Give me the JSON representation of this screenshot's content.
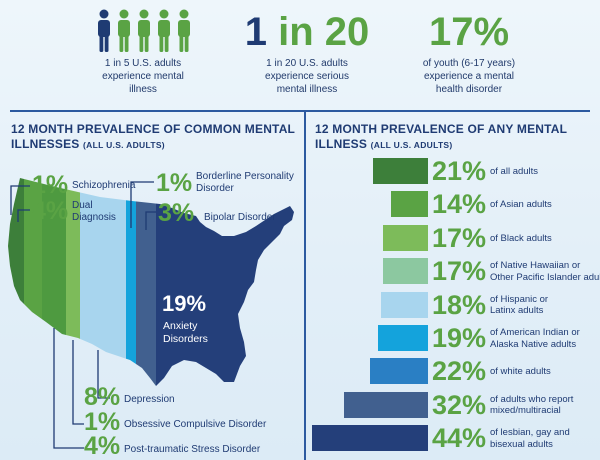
{
  "header": {
    "stats": [
      {
        "big": "",
        "desc": "1 in 5 U.S. adults experience mental illness"
      },
      {
        "big": "1 in 20",
        "desc": "1 in 20 U.S. adults experience serious mental illness"
      },
      {
        "big": "17%",
        "desc": "of youth (6-17 years) experience a mental health disorder"
      }
    ]
  },
  "left_section": {
    "title": "12 MONTH PREVALENCE OF COMMON MENTAL ILLNESSES",
    "subtitle": "(ALL U.S. ADULTS)"
  },
  "right_section": {
    "title": "12 MONTH PREVALENCE OF ANY MENTAL ILLNESS",
    "subtitle": "(ALL U.S. ADULTS)"
  },
  "chart_data": [
    {
      "type": "pie",
      "title": "12 MONTH PREVALENCE OF COMMON MENTAL ILLNESSES (ALL U.S. ADULTS)",
      "categories": [
        "Schizophrenia",
        "Dual Diagnosis",
        "Borderline Personality Disorder",
        "Bipolar Disorder",
        "Anxiety Disorders",
        "Depression",
        "Obsessive Compulsive Disorder",
        "Post-traumatic Stress Disorder"
      ],
      "values": [
        1,
        4,
        1,
        3,
        19,
        8,
        1,
        4
      ],
      "labels": [
        "1%",
        "4%",
        "1%",
        "3%",
        "19%",
        "8%",
        "1%",
        "4%"
      ],
      "colors": [
        "#3d7f3a",
        "#5aa344",
        "#14a3dc",
        "#41608f",
        "#243f7a",
        "#a8d5ee",
        "#7dbb5a",
        "#4e9a40"
      ]
    },
    {
      "type": "bar",
      "title": "12 MONTH PREVALENCE OF ANY MENTAL ILLNESS (ALL U.S. ADULTS)",
      "categories": [
        "of all adults",
        "of Asian adults",
        "of Black adults",
        "of Native Hawaiian or Other Pacific Islander adults",
        "of Hispanic or Latinx adults",
        "of American Indian or Alaska Native adults",
        "of white adults",
        "of adults who report mixed/multiracial",
        "of lesbian, gay and bisexual adults"
      ],
      "category_lines": [
        [
          "of all adults"
        ],
        [
          "of Asian adults"
        ],
        [
          "of Black adults"
        ],
        [
          "of Native Hawaiian or",
          "Other Pacific Islander adults"
        ],
        [
          "of Hispanic or",
          "Latinx adults"
        ],
        [
          "of American Indian or",
          "Alaska Native adults"
        ],
        [
          "of white adults"
        ],
        [
          "of adults who report",
          "mixed/multiracial"
        ],
        [
          "of lesbian, gay and",
          "bisexual adults"
        ]
      ],
      "values": [
        21,
        14,
        17,
        17,
        18,
        19,
        22,
        32,
        44
      ],
      "labels": [
        "21%",
        "14%",
        "17%",
        "17%",
        "18%",
        "19%",
        "22%",
        "32%",
        "44%"
      ],
      "colors": [
        "#3d7f3a",
        "#5aa344",
        "#7dbb5a",
        "#8cc8a0",
        "#a8d5ee",
        "#14a3dc",
        "#2a7fc4",
        "#41608f",
        "#243f7a"
      ],
      "orientation": "horizontal"
    }
  ]
}
